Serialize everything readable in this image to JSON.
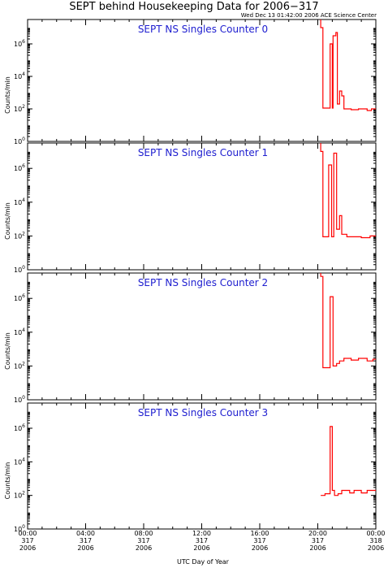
{
  "header": {
    "title": "SEPT behind Housekeeping Data for 2006−317",
    "timestamp": "Wed Dec 13 01:42:00 2006 ACE Science Center"
  },
  "chart_data": {
    "type": "line",
    "xlabel": "UTC Day of Year",
    "ylabel": "Counts/min",
    "ylim_log10": [
      0,
      7.5
    ],
    "y_ticks": [
      {
        "base": "10",
        "exp": "6",
        "value": 6
      },
      {
        "base": "10",
        "exp": "4",
        "value": 4
      },
      {
        "base": "10",
        "exp": "2",
        "value": 2
      },
      {
        "base": "10",
        "exp": "0",
        "value": 0
      }
    ],
    "x_range_hours": [
      0,
      24
    ],
    "x_ticks": [
      {
        "hours": 0,
        "time": "00:00",
        "doy": "317",
        "year": "2006"
      },
      {
        "hours": 4,
        "time": "04:00",
        "doy": "317",
        "year": "2006"
      },
      {
        "hours": 8,
        "time": "08:00",
        "doy": "317",
        "year": "2006"
      },
      {
        "hours": 12,
        "time": "12:00",
        "doy": "317",
        "year": "2006"
      },
      {
        "hours": 16,
        "time": "16:00",
        "doy": "317",
        "year": "2006"
      },
      {
        "hours": 20,
        "time": "20:00",
        "doy": "317",
        "year": "2006"
      },
      {
        "hours": 24,
        "time": "00:00",
        "doy": "318",
        "year": "2006"
      }
    ],
    "panels": [
      {
        "title": "SEPT NS Singles Counter 0",
        "series": [
          [
            20.2,
            7.5
          ],
          [
            20.2,
            7.0
          ],
          [
            20.35,
            7.0
          ],
          [
            20.35,
            2.05
          ],
          [
            20.85,
            2.05
          ],
          [
            20.85,
            6.0
          ],
          [
            21.0,
            6.0
          ],
          [
            21.0,
            2.05
          ],
          [
            21.05,
            2.05
          ],
          [
            21.05,
            6.5
          ],
          [
            21.25,
            6.5
          ],
          [
            21.25,
            6.7
          ],
          [
            21.35,
            6.7
          ],
          [
            21.35,
            2.3
          ],
          [
            21.5,
            2.3
          ],
          [
            21.5,
            3.1
          ],
          [
            21.65,
            3.1
          ],
          [
            21.65,
            2.8
          ],
          [
            21.8,
            2.8
          ],
          [
            21.8,
            2.0
          ],
          [
            22.3,
            2.0
          ],
          [
            22.3,
            1.95
          ],
          [
            22.8,
            1.95
          ],
          [
            22.8,
            2.0
          ],
          [
            23.4,
            2.0
          ],
          [
            23.4,
            1.9
          ],
          [
            23.7,
            1.9
          ],
          [
            23.7,
            2.0
          ],
          [
            24.0,
            2.0
          ]
        ]
      },
      {
        "title": "SEPT NS Singles Counter 1",
        "series": [
          [
            20.2,
            7.5
          ],
          [
            20.2,
            7.0
          ],
          [
            20.35,
            7.0
          ],
          [
            20.35,
            1.95
          ],
          [
            20.75,
            1.95
          ],
          [
            20.75,
            6.2
          ],
          [
            20.95,
            6.2
          ],
          [
            20.95,
            1.95
          ],
          [
            21.1,
            1.95
          ],
          [
            21.1,
            6.9
          ],
          [
            21.3,
            6.9
          ],
          [
            21.3,
            2.4
          ],
          [
            21.5,
            2.4
          ],
          [
            21.5,
            3.2
          ],
          [
            21.65,
            3.2
          ],
          [
            21.65,
            2.1
          ],
          [
            22.0,
            2.1
          ],
          [
            22.0,
            1.95
          ],
          [
            23.0,
            1.95
          ],
          [
            23.0,
            1.9
          ],
          [
            23.6,
            1.9
          ],
          [
            23.6,
            2.0
          ],
          [
            24.0,
            2.0
          ]
        ]
      },
      {
        "title": "SEPT NS Singles Counter 2",
        "series": [
          [
            20.2,
            7.5
          ],
          [
            20.2,
            7.3
          ],
          [
            20.35,
            7.3
          ],
          [
            20.35,
            1.9
          ],
          [
            20.85,
            1.9
          ],
          [
            20.85,
            6.1
          ],
          [
            21.05,
            6.1
          ],
          [
            21.05,
            2.0
          ],
          [
            21.3,
            2.0
          ],
          [
            21.3,
            2.15
          ],
          [
            21.5,
            2.15
          ],
          [
            21.5,
            2.3
          ],
          [
            21.8,
            2.3
          ],
          [
            21.8,
            2.45
          ],
          [
            22.3,
            2.45
          ],
          [
            22.3,
            2.35
          ],
          [
            22.8,
            2.35
          ],
          [
            22.8,
            2.45
          ],
          [
            23.4,
            2.45
          ],
          [
            23.4,
            2.3
          ],
          [
            23.8,
            2.3
          ],
          [
            23.8,
            2.4
          ],
          [
            24.0,
            2.4
          ]
        ]
      },
      {
        "title": "SEPT NS Singles Counter 3",
        "series": [
          [
            20.2,
            2.0
          ],
          [
            20.5,
            2.0
          ],
          [
            20.5,
            2.1
          ],
          [
            20.85,
            2.1
          ],
          [
            20.85,
            6.1
          ],
          [
            21.0,
            6.1
          ],
          [
            21.0,
            2.3
          ],
          [
            21.15,
            2.3
          ],
          [
            21.15,
            2.0
          ],
          [
            21.4,
            2.0
          ],
          [
            21.4,
            2.1
          ],
          [
            21.65,
            2.1
          ],
          [
            21.65,
            2.3
          ],
          [
            22.2,
            2.3
          ],
          [
            22.2,
            2.15
          ],
          [
            22.5,
            2.15
          ],
          [
            22.5,
            2.3
          ],
          [
            23.0,
            2.3
          ],
          [
            23.0,
            2.15
          ],
          [
            23.4,
            2.15
          ],
          [
            23.4,
            2.3
          ],
          [
            24.0,
            2.3
          ]
        ]
      }
    ]
  }
}
